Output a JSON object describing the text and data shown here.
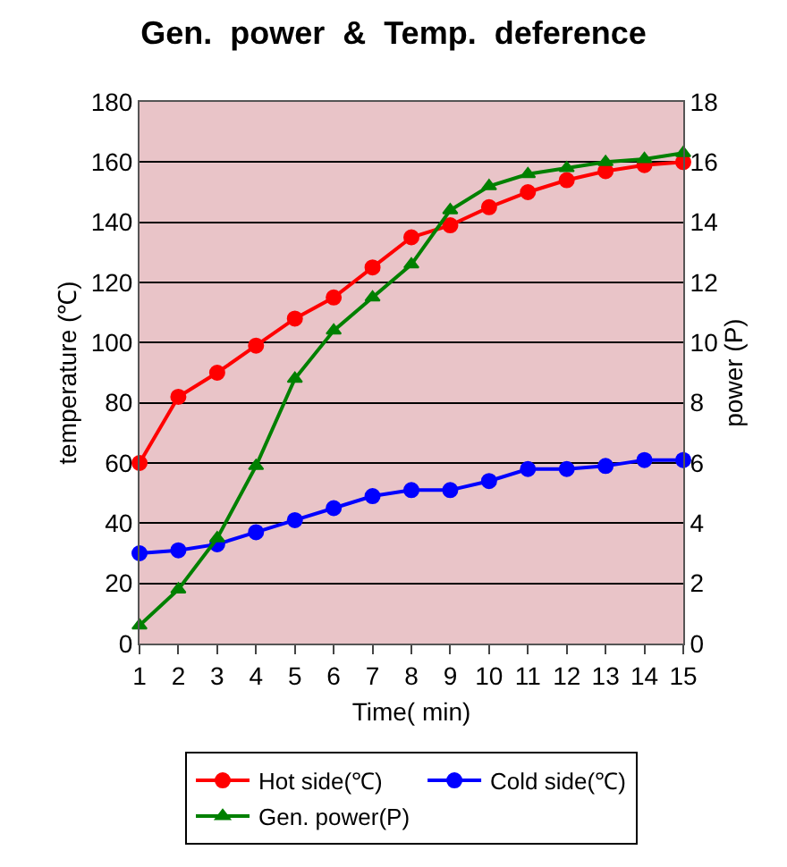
{
  "chart_data": {
    "type": "line",
    "title": "Gen.  power  &  Temp.  deference",
    "xlabel": "Time( min)",
    "ylabel": "temperature (℃)",
    "y2label": "power (P)",
    "x": [
      1,
      2,
      3,
      4,
      5,
      6,
      7,
      8,
      9,
      10,
      11,
      12,
      13,
      14,
      15
    ],
    "series": [
      {
        "name": "Hot side(℃)",
        "color": "#ff0000",
        "marker": "circle",
        "values": [
          60,
          82,
          90,
          99,
          108,
          115,
          125,
          135,
          139,
          145,
          150,
          154,
          157,
          159,
          160
        ]
      },
      {
        "name": "Cold side(℃)",
        "color": "#0000ff",
        "marker": "circle",
        "values": [
          30,
          31,
          33,
          37,
          41,
          45,
          49,
          51,
          51,
          54,
          58,
          58,
          59,
          61,
          61
        ]
      },
      {
        "name": "Gen. power(P)",
        "color": "#008000",
        "marker": "triangle",
        "axis": "y2",
        "values": [
          0.6,
          1.8,
          3.5,
          5.9,
          8.8,
          10.4,
          11.5,
          12.6,
          14.4,
          15.2,
          15.6,
          15.8,
          16.0,
          16.1,
          16.3
        ]
      }
    ],
    "xlim": [
      1,
      15
    ],
    "xticks": [
      1,
      2,
      3,
      4,
      5,
      6,
      7,
      8,
      9,
      10,
      11,
      12,
      13,
      14,
      15
    ],
    "ylim": [
      0,
      180
    ],
    "yticks": [
      0,
      20,
      40,
      60,
      80,
      100,
      120,
      140,
      160,
      180
    ],
    "y2lim": [
      0,
      18
    ],
    "y2ticks": [
      0,
      2,
      4,
      6,
      8,
      10,
      12,
      14,
      16,
      18
    ],
    "grid": "y",
    "legend": "bottom",
    "line_style": "solid"
  }
}
